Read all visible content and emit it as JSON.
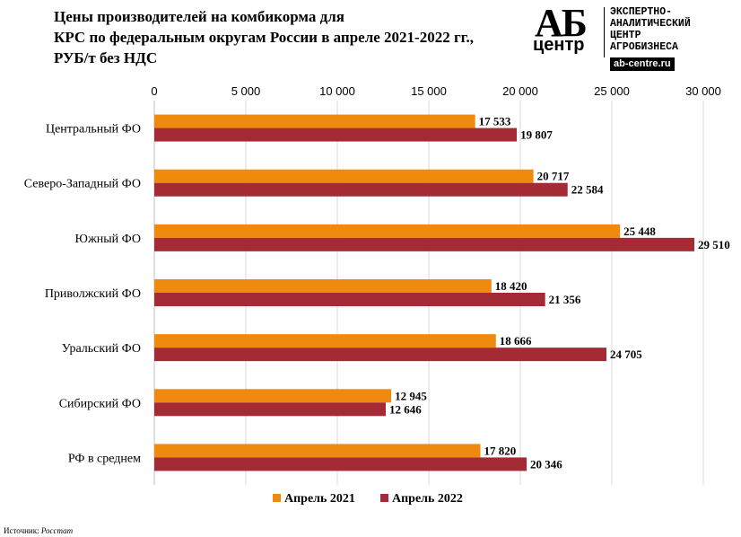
{
  "header": {
    "title_lines": [
      "Цены производителей  на комбикорма для",
      "КРС по федеральным округам России в апреле 2021-2022 гг.,",
      "РУБ/т без НДС"
    ]
  },
  "logo": {
    "ab": "АБ",
    "center": "центр",
    "lines": [
      "ЭКСПЕРТНО-",
      "АНАЛИТИЧЕСКИЙ",
      "ЦЕНТР",
      "АГРОБИЗНЕСА"
    ],
    "url": "ab-centre.ru"
  },
  "source": {
    "label": "Источник:",
    "value": "Росстат"
  },
  "colors": {
    "series_2021": "#f08a0e",
    "series_2022": "#a42a36",
    "grid": "#d9d9d9"
  },
  "chart_data": {
    "type": "bar",
    "orientation": "horizontal",
    "title": "Цены производителей  на комбикорма для КРС по федеральным округам России в апреле 2021-2022 гг., РУБ/т без НДС",
    "categories": [
      "Центральный ФО",
      "Северо-Западный ФО",
      "Южный ФО",
      "Приволжский ФО",
      "Уральский ФО",
      "Сибирский ФО",
      "РФ в среднем"
    ],
    "series": [
      {
        "name": "Апрель 2021",
        "values": [
          17533,
          20717,
          25448,
          18420,
          18666,
          12945,
          17820
        ],
        "labels": [
          "17 533",
          "20 717",
          "25 448",
          "18 420",
          "18 666",
          "12 945",
          "17 820"
        ]
      },
      {
        "name": "Апрель 2022",
        "values": [
          19807,
          22584,
          29510,
          21356,
          24705,
          12646,
          20346
        ],
        "labels": [
          "19 807",
          "22 584",
          "29 510",
          "21 356",
          "24 705",
          "12 646",
          "20 346"
        ]
      }
    ],
    "xlim": [
      0,
      30000
    ],
    "x_ticks": [
      0,
      5000,
      10000,
      15000,
      20000,
      25000,
      30000
    ],
    "x_tick_labels": [
      "0",
      "5 000",
      "10 000",
      "15 000",
      "20 000",
      "25 000",
      "30 000"
    ],
    "axis_position": "top",
    "grid": true,
    "legend_position": "bottom"
  }
}
